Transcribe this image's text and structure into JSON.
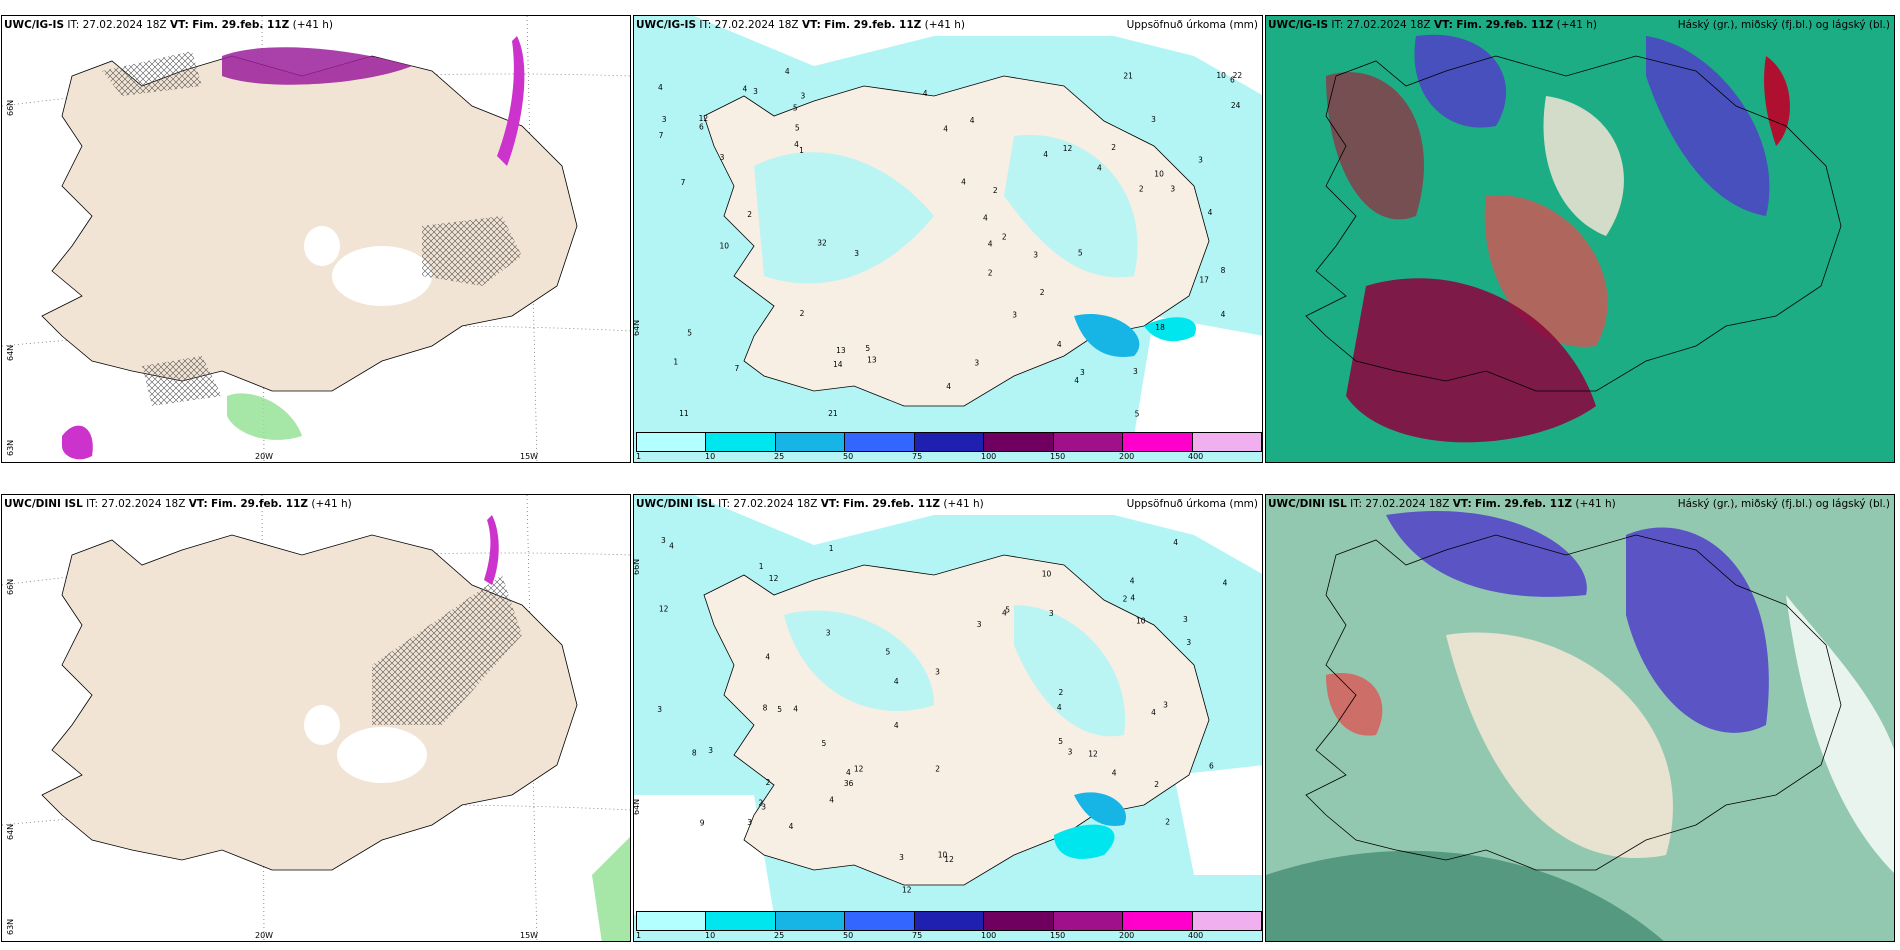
{
  "panels": [
    {
      "model": "UWC/IG-IS",
      "it_label": "IT:",
      "it_value": "27.02.2024 18Z",
      "vt_label": "VT:",
      "vt_value": "Fim. 29.feb. 11Z",
      "lead": "(+41 h)",
      "right_title": "",
      "lat_labels": [
        "66N",
        "64N",
        "63N"
      ],
      "lon_labels": [
        "20W",
        "15W"
      ]
    },
    {
      "model": "UWC/IG-IS",
      "it_label": "IT:",
      "it_value": "27.02.2024 18Z",
      "vt_label": "VT:",
      "vt_value": "Fim. 29.feb. 11Z",
      "lead": "(+41 h)",
      "right_title": "Uppsöfnuð úrkoma (mm)",
      "lat_labels": [
        "64N"
      ],
      "lon_labels": []
    },
    {
      "model": "UWC/IG-IS",
      "it_label": "IT:",
      "it_value": "27.02.2024 18Z",
      "vt_label": "VT:",
      "vt_value": "Fim. 29.feb. 11Z",
      "lead": "(+41 h)",
      "right_title": "Háský (gr.), miðský (fj.bl.) og lágský (bl.)",
      "lat_labels": [],
      "lon_labels": []
    },
    {
      "model": "UWC/DINI ISL",
      "it_label": "IT:",
      "it_value": "27.02.2024 18Z",
      "vt_label": "VT:",
      "vt_value": "Fim. 29.feb. 11Z",
      "lead": "(+41 h)",
      "right_title": "",
      "lat_labels": [
        "66N",
        "64N",
        "63N"
      ],
      "lon_labels": [
        "20W",
        "15W"
      ]
    },
    {
      "model": "UWC/DINI ISL",
      "it_label": "IT:",
      "it_value": "27.02.2024 18Z",
      "vt_label": "VT:",
      "vt_value": "Fim. 29.feb. 11Z",
      "lead": "(+41 h)",
      "right_title": "Uppsöfnuð úrkoma (mm)",
      "lat_labels": [
        "66N",
        "64N"
      ],
      "lon_labels": []
    },
    {
      "model": "UWC/DINI ISL",
      "it_label": "IT:",
      "it_value": "27.02.2024 18Z",
      "vt_label": "VT:",
      "vt_value": "Fim. 29.feb. 11Z",
      "lead": "(+41 h)",
      "right_title": "Háský (gr.), miðský (fj.bl.) og lágský (bl.)",
      "lat_labels": [],
      "lon_labels": []
    }
  ],
  "precip_colorbar": {
    "ticks": [
      "1",
      "10",
      "25",
      "50",
      "75",
      "100",
      "150",
      "200",
      "400"
    ],
    "colors": [
      "#b3ffff",
      "#00e6ee",
      "#17b4e6",
      "#3366ff",
      "#2020b0",
      "#700060",
      "#a0108a",
      "#ff00cc",
      "#f0b0f0"
    ]
  },
  "colors": {
    "land": "#f2e4d4",
    "sea": "#ffffff",
    "light_precip": "#b3f5f5",
    "snow_hatch": "#555555",
    "high_cloud": "#00bb88",
    "mid_cloud": "#5040c8",
    "low_cloud": "#b01030"
  },
  "precip_values_top": [
    "4",
    "4",
    "3",
    "2",
    "3",
    "3",
    "2",
    "2",
    "1",
    "2",
    "2",
    "2",
    "3",
    "4",
    "3",
    "4",
    "5",
    "4",
    "3",
    "5",
    "4",
    "3",
    "3",
    "2",
    "4",
    "5",
    "4",
    "6",
    "5",
    "4",
    "3",
    "3",
    "4",
    "2",
    "3",
    "10",
    "12",
    "7",
    "17",
    "14",
    "13",
    "13",
    "18",
    "5",
    "4",
    "6",
    "4",
    "1",
    "32",
    "22",
    "7",
    "21",
    "21",
    "3",
    "24",
    "12",
    "11",
    "3",
    "4",
    "4",
    "4",
    "4",
    "4",
    "5",
    "10",
    "10",
    "8",
    "7"
  ],
  "precip_values_bottom": [
    "9",
    "3",
    "5",
    "4",
    "2",
    "2",
    "1",
    "2",
    "3",
    "4",
    "4",
    "3",
    "4",
    "4",
    "4",
    "5",
    "4",
    "4",
    "4",
    "3",
    "3",
    "2",
    "2",
    "3",
    "4",
    "3",
    "8",
    "5",
    "4",
    "3",
    "4",
    "4",
    "5",
    "12",
    "12",
    "3",
    "4",
    "4",
    "3",
    "5",
    "2",
    "1",
    "2",
    "3",
    "3",
    "3",
    "4",
    "10",
    "10",
    "3",
    "8",
    "6",
    "12",
    "12",
    "12",
    "36",
    "10",
    "12"
  ]
}
